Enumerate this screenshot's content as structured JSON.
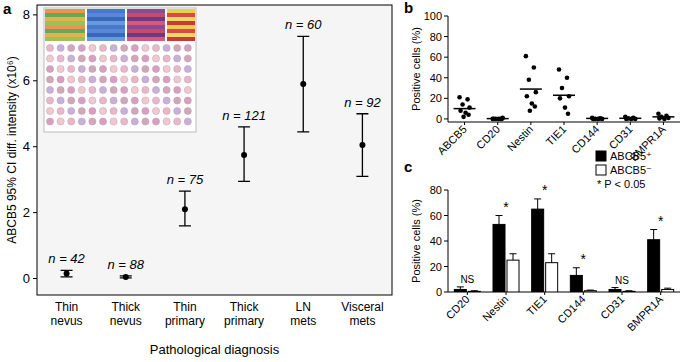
{
  "chart_data": [
    {
      "title": "a",
      "type": "errorbar",
      "categories": [
        "Thin nevus",
        "Thick nevus",
        "Thin primary",
        "Thick primary",
        "LN mets",
        "Visceral mets"
      ],
      "values": [
        0.15,
        0.05,
        2.1,
        3.75,
        5.9,
        4.05
      ],
      "ci_low": [
        0.05,
        0.02,
        1.6,
        2.95,
        4.45,
        3.1
      ],
      "ci_high": [
        0.25,
        0.08,
        2.65,
        4.6,
        7.35,
        5.0
      ],
      "n_labels": [
        "n = 42",
        "n = 88",
        "n = 75",
        "n = 121",
        "n = 60",
        "n = 92"
      ],
      "y_label": "ABCB5 95% CI diff. intensity (x10⁶)",
      "x_label": "Pathological diagnosis",
      "ylim": [
        -0.5,
        8.3
      ],
      "yticks": [
        0,
        2,
        4,
        6,
        8
      ],
      "grid": false
    },
    {
      "title": "b",
      "type": "strip",
      "categories": [
        "ABCB5",
        "CD20",
        "Nestin",
        "TIE1",
        "CD144",
        "CD31",
        "BMPR1A"
      ],
      "values": [
        10,
        0.3,
        29,
        23,
        0.5,
        0.6,
        2
      ],
      "points": [
        [
          21,
          19,
          14,
          11,
          8,
          6,
          4,
          2
        ],
        [
          0,
          0,
          0,
          1,
          0,
          0,
          0
        ],
        [
          61,
          50,
          38,
          26,
          22,
          15,
          12,
          8
        ],
        [
          48,
          40,
          30,
          22,
          20,
          11,
          5
        ],
        [
          1,
          0.5,
          0,
          0,
          0,
          0
        ],
        [
          2,
          1,
          0.5,
          0,
          0,
          0
        ],
        [
          5,
          3,
          2,
          1,
          0.5,
          0
        ]
      ],
      "y_label": "Positive cells (%)",
      "ylim": [
        -3,
        100
      ],
      "yticks": [
        0,
        20,
        40,
        60,
        80,
        100
      ],
      "grid": false,
      "marker": "circle"
    },
    {
      "title": "c",
      "type": "bar",
      "categories": [
        "CD20",
        "Nestin",
        "TIE1",
        "CD144",
        "CD31",
        "BMPR1A"
      ],
      "series": [
        {
          "name": "ABCB5⁺",
          "color": "#000000",
          "values": [
            2,
            53,
            65,
            13,
            2,
            41
          ],
          "errors": [
            2,
            7,
            8,
            6,
            1.5,
            8
          ]
        },
        {
          "name": "ABCB5⁻",
          "color": "#ffffff",
          "values": [
            0.5,
            25,
            23,
            1,
            0.5,
            2
          ],
          "errors": [
            0.5,
            5,
            7,
            0.5,
            0.5,
            1
          ]
        }
      ],
      "significance": [
        "NS",
        "*",
        "*",
        "*",
        "NS",
        "*"
      ],
      "legend_note": "* P < 0.05",
      "y_label": "Positive cells (%)",
      "ylim": [
        0,
        80
      ],
      "yticks": [
        0,
        20,
        40,
        60,
        80
      ],
      "grid": false,
      "legend": "upper right"
    }
  ]
}
